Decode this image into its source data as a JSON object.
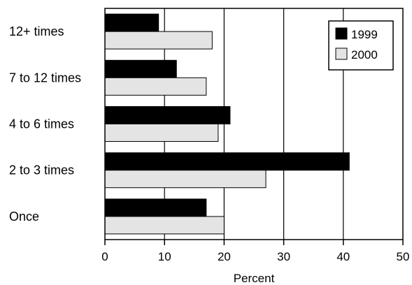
{
  "chart_data": {
    "type": "bar",
    "orientation": "horizontal",
    "categories": [
      "12+ times",
      "7 to 12 times",
      "4 to 6 times",
      "2 to 3 times",
      "Once"
    ],
    "series": [
      {
        "name": "1999",
        "values": [
          9,
          12,
          21,
          41,
          17
        ],
        "color": "#000000"
      },
      {
        "name": "2000",
        "values": [
          18,
          17,
          19,
          27,
          20
        ],
        "color": "#e4e4e4"
      }
    ],
    "title": "",
    "xlabel": "Percent",
    "ylabel": "",
    "xlim": [
      0,
      50
    ],
    "xticks": [
      0,
      10,
      20,
      30,
      40,
      50
    ],
    "grid": "vertical",
    "legend": "top-right"
  }
}
